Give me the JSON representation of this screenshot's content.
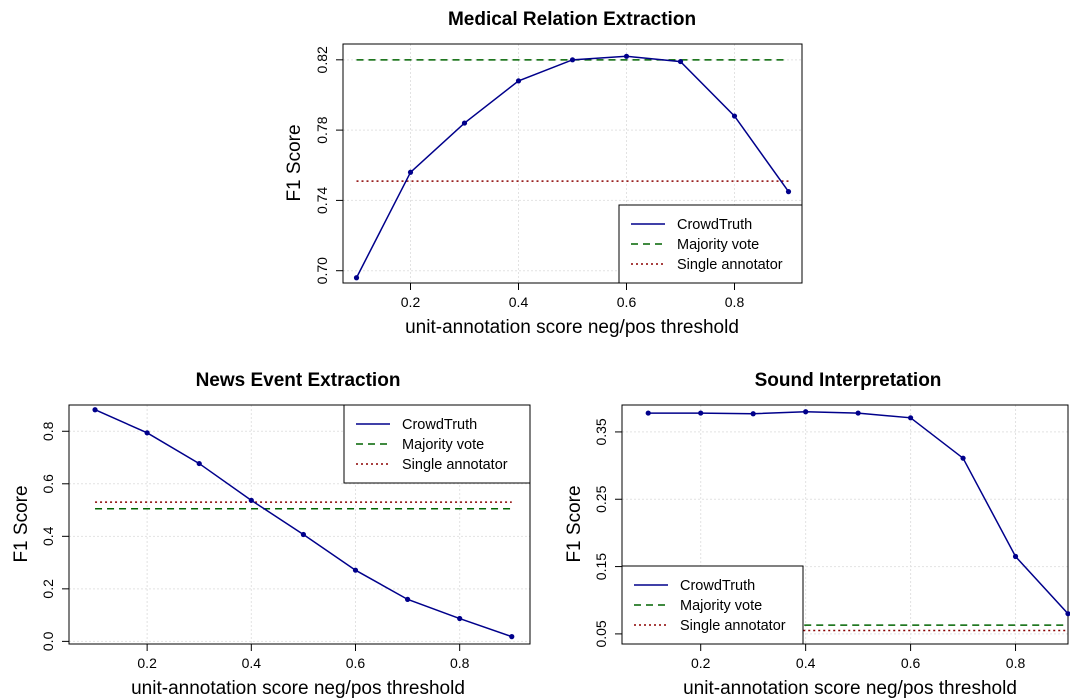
{
  "chart_data": [
    {
      "type": "line",
      "title": "Medical Relation Extraction",
      "xlabel": "unit-annotation score neg/pos threshold",
      "ylabel": "F1 Score",
      "x": [
        0.1,
        0.2,
        0.3,
        0.4,
        0.5,
        0.6,
        0.7,
        0.8,
        0.9
      ],
      "xlim": [
        0.075,
        0.925
      ],
      "ylim": [
        0.693,
        0.829
      ],
      "xticks": [
        0.2,
        0.4,
        0.6,
        0.8
      ],
      "xtick_labels": [
        "0.2",
        "0.4",
        "0.6",
        "0.8"
      ],
      "yticks": [
        0.7,
        0.74,
        0.78,
        0.82
      ],
      "ytick_labels": [
        "0.70",
        "0.74",
        "0.78",
        "0.82"
      ],
      "grid": true,
      "legend_position": "bottom-right",
      "series": [
        {
          "name": "CrowdTruth",
          "style": "solid",
          "markers": true,
          "color": "#00008b",
          "values": [
            0.696,
            0.756,
            0.784,
            0.808,
            0.82,
            0.822,
            0.819,
            0.788,
            0.745
          ]
        },
        {
          "name": "Majority vote",
          "style": "dashed",
          "markers": false,
          "color": "#006400",
          "values": [
            0.82,
            0.82,
            0.82,
            0.82,
            0.82,
            0.82,
            0.82,
            0.82,
            0.82
          ]
        },
        {
          "name": "Single annotator",
          "style": "dotted",
          "markers": false,
          "color": "#8b0000",
          "values": [
            0.751,
            0.751,
            0.751,
            0.751,
            0.751,
            0.751,
            0.751,
            0.751,
            0.751
          ]
        }
      ]
    },
    {
      "type": "line",
      "title": "News Event Extraction",
      "xlabel": "unit-annotation score neg/pos threshold",
      "ylabel": "F1 Score",
      "x": [
        0.1,
        0.2,
        0.3,
        0.4,
        0.5,
        0.6,
        0.7,
        0.8,
        0.9
      ],
      "xlim": [
        0.05,
        0.935
      ],
      "ylim": [
        -0.01,
        0.9
      ],
      "xticks": [
        0.2,
        0.4,
        0.6,
        0.8
      ],
      "xtick_labels": [
        "0.2",
        "0.4",
        "0.6",
        "0.8"
      ],
      "yticks": [
        0.0,
        0.2,
        0.4,
        0.6,
        0.8
      ],
      "ytick_labels": [
        "0.0",
        "0.2",
        "0.4",
        "0.6",
        "0.8"
      ],
      "grid": true,
      "legend_position": "top-right",
      "series": [
        {
          "name": "CrowdTruth",
          "style": "solid",
          "markers": true,
          "color": "#00008b",
          "values": [
            0.882,
            0.794,
            0.677,
            0.537,
            0.407,
            0.271,
            0.16,
            0.087,
            0.018
          ]
        },
        {
          "name": "Majority vote",
          "style": "dashed",
          "markers": false,
          "color": "#006400",
          "values": [
            0.505,
            0.505,
            0.505,
            0.505,
            0.505,
            0.505,
            0.505,
            0.505,
            0.505
          ]
        },
        {
          "name": "Single annotator",
          "style": "dotted",
          "markers": false,
          "color": "#8b0000",
          "values": [
            0.53,
            0.53,
            0.53,
            0.53,
            0.53,
            0.53,
            0.53,
            0.53,
            0.53
          ]
        }
      ]
    },
    {
      "type": "line",
      "title": "Sound Interpretation",
      "xlabel": "unit-annotation score neg/pos threshold",
      "ylabel": "F1 Score",
      "x": [
        0.1,
        0.2,
        0.3,
        0.4,
        0.5,
        0.6,
        0.7,
        0.8,
        0.9
      ],
      "xlim": [
        0.05,
        0.9
      ],
      "ylim": [
        0.035,
        0.39
      ],
      "xticks": [
        0.2,
        0.4,
        0.6,
        0.8
      ],
      "xtick_labels": [
        "0.2",
        "0.4",
        "0.6",
        "0.8"
      ],
      "yticks": [
        0.05,
        0.15,
        0.25,
        0.35
      ],
      "ytick_labels": [
        "0.05",
        "0.15",
        "0.25",
        "0.35"
      ],
      "grid": true,
      "legend_position": "bottom-left",
      "series": [
        {
          "name": "CrowdTruth",
          "style": "solid",
          "markers": true,
          "color": "#00008b",
          "values": [
            0.378,
            0.378,
            0.377,
            0.38,
            0.378,
            0.371,
            0.311,
            0.165,
            0.08
          ]
        },
        {
          "name": "Majority vote",
          "style": "dashed",
          "markers": false,
          "color": "#006400",
          "values": [
            0.063,
            0.063,
            0.063,
            0.063,
            0.063,
            0.063,
            0.063,
            0.063,
            0.063
          ]
        },
        {
          "name": "Single annotator",
          "style": "dotted",
          "markers": false,
          "color": "#8b0000",
          "values": [
            0.055,
            0.055,
            0.055,
            0.055,
            0.055,
            0.055,
            0.055,
            0.055,
            0.055
          ]
        }
      ]
    }
  ]
}
